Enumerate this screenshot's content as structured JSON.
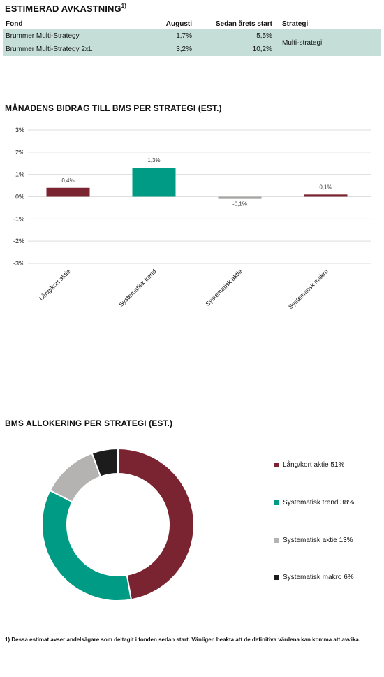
{
  "returns": {
    "title": "ESTIMERAD AVKASTNING",
    "title_note": "1)",
    "headers": {
      "fund": "Fond",
      "month": "Augusti",
      "ytd": "Sedan årets start",
      "strategy": "Strategi"
    },
    "rows": [
      {
        "fund": "Brummer Multi-Strategy",
        "month": "1,7%",
        "ytd": "5,5%"
      },
      {
        "fund": "Brummer Multi-Strategy 2xL",
        "month": "3,2%",
        "ytd": "10,2%"
      }
    ],
    "strategy_value": "Multi-strategi",
    "row_color": "#c5ded8"
  },
  "chart_data": [
    {
      "type": "bar",
      "title": "MÅNADENS BIDRAG TILL BMS PER STRATEGI (EST.)",
      "categories": [
        "Lång/kort aktie",
        "Systematisk trend",
        "Systematisk aktie",
        "Systematisk makro"
      ],
      "values": [
        0.4,
        1.3,
        -0.1,
        0.1
      ],
      "value_labels": [
        "0,4%",
        "1,3%",
        "-0,1%",
        "0,1%"
      ],
      "colors": [
        "#7b2431",
        "#009b84",
        "#a7a5a4",
        "#7b2431"
      ],
      "ylim": [
        -3,
        3
      ],
      "yticks": [
        3,
        2,
        1,
        0,
        -1,
        -2,
        -3
      ],
      "ytick_labels": [
        "3%",
        "2%",
        "1%",
        "0%",
        "-1%",
        "-2%",
        "-3%"
      ],
      "grid": true,
      "xlabel": "",
      "ylabel": ""
    },
    {
      "type": "pie",
      "title": "BMS ALLOKERING PER STRATEGI (EST.)",
      "donut": true,
      "labels": [
        "Lång/kort aktie",
        "Systematisk trend",
        "Systematisk aktie",
        "Systematisk makro"
      ],
      "values": [
        51,
        38,
        13,
        6
      ],
      "legend_entries": [
        "Lång/kort aktie 51%",
        "Systematisk trend 38%",
        "Systematisk aktie 13%",
        "Systematisk makro 6%"
      ],
      "colors": [
        "#7b2431",
        "#009b84",
        "#b5b3b2",
        "#1c1c1c"
      ],
      "legend_position": "right"
    }
  ],
  "footnote": "1) Dessa estimat avser andelsägare som deltagit i fonden sedan start. Vänligen beakta att de definitiva värdena kan komma att avvika."
}
